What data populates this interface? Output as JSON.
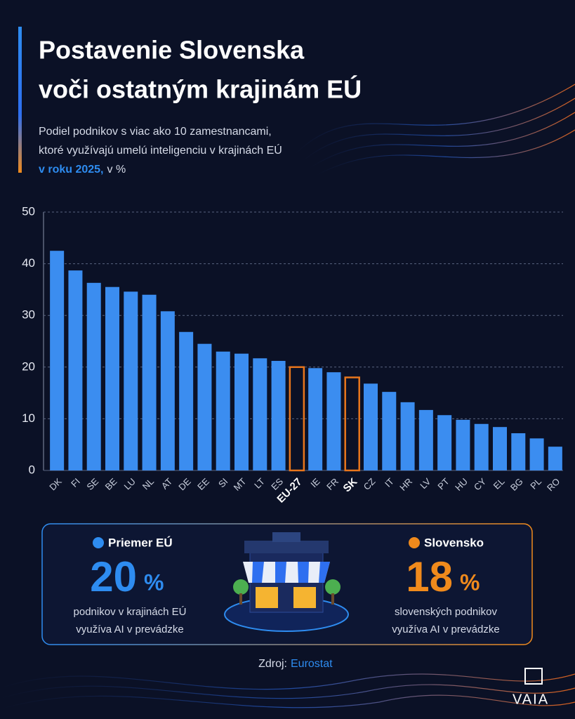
{
  "chart_data": {
    "type": "bar",
    "title": [
      "Postavenie Slovenska",
      "voči ostatným krajinám EÚ"
    ],
    "subtitle": [
      "Podiel podnikov s viac ako 10 zamestnancami,",
      "ktoré využívajú umelú inteligenciu v krajinách EÚ"
    ],
    "subtitle_year": "v roku 2025,",
    "subtitle_unit": "v %",
    "categories": [
      "DK",
      "FI",
      "SE",
      "BE",
      "LU",
      "NL",
      "AT",
      "DE",
      "EE",
      "SI",
      "MT",
      "LT",
      "ES",
      "EU-27",
      "IE",
      "FR",
      "SK",
      "CZ",
      "IT",
      "HR",
      "LV",
      "PT",
      "HU",
      "CY",
      "EL",
      "BG",
      "PL",
      "RO"
    ],
    "values": [
      42.5,
      38.7,
      36.3,
      35.5,
      34.6,
      34.0,
      30.8,
      26.8,
      24.5,
      23.0,
      22.6,
      21.7,
      21.2,
      20,
      19.8,
      19.0,
      18,
      16.8,
      15.2,
      13.2,
      11.7,
      10.7,
      9.8,
      9.0,
      8.4,
      7.2,
      6.2,
      4.6
    ],
    "color": "#3b8df0",
    "highlight": [
      "EU-27",
      "SK"
    ],
    "highlight_color": "#e8761c",
    "ylim": [
      0,
      50
    ],
    "yticks": [
      0,
      10,
      20,
      30,
      40,
      50
    ],
    "grid": true
  },
  "summary": [
    {
      "label": "Priemer EÚ",
      "value": 20,
      "unit": "%",
      "text": [
        "podnikov v krajinách EÚ",
        "využíva AI v prevádzke"
      ],
      "color": "#2e8cf0"
    },
    {
      "label": "Slovensko",
      "value": 18,
      "unit": "%",
      "text": [
        "slovenských podnikov",
        "využíva AI v prevádzke"
      ],
      "color": "#f08a1c"
    }
  ],
  "source": {
    "label": "Zdroj:",
    "name": "Eurostat"
  },
  "logo": "VAIA"
}
